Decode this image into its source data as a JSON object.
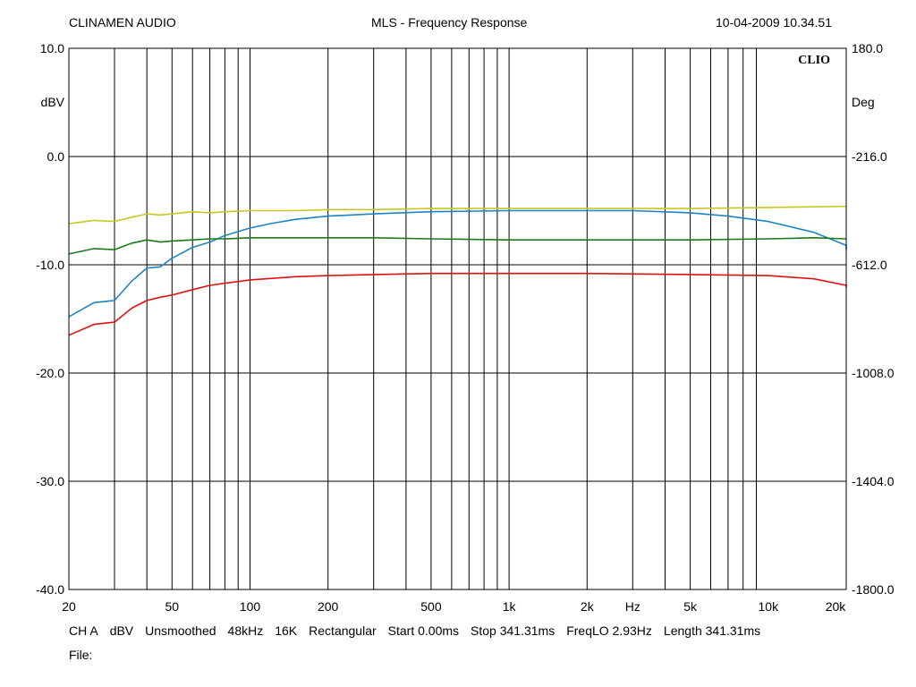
{
  "header": {
    "left": "CLINAMEN AUDIO",
    "center": "MLS - Frequency Response",
    "right": "10-04-2009 10.34.51"
  },
  "badge": "CLIO",
  "footer": {
    "settings": [
      "CH A",
      "dBV",
      "Unsmoothed",
      "48kHz",
      "16K",
      "Rectangular",
      "Start 0.00ms",
      "Stop 341.31ms",
      "FreqLO 2.93Hz",
      "Length 341.31ms"
    ],
    "file_label": "File:"
  },
  "chart_data": {
    "type": "line",
    "title": "MLS - Frequency Response",
    "x_scale": "log",
    "xlim": [
      20,
      20000
    ],
    "x_ticks": [
      {
        "value": 20,
        "label": "20"
      },
      {
        "value": 50,
        "label": "50"
      },
      {
        "value": 100,
        "label": "100"
      },
      {
        "value": 200,
        "label": "200"
      },
      {
        "value": 500,
        "label": "500"
      },
      {
        "value": 1000,
        "label": "1k"
      },
      {
        "value": 2000,
        "label": "2k"
      },
      {
        "value": 3000,
        "label": "Hz"
      },
      {
        "value": 5000,
        "label": "5k"
      },
      {
        "value": 10000,
        "label": "10k"
      },
      {
        "value": 20000,
        "label": "20k"
      }
    ],
    "ylim": [
      -40,
      10
    ],
    "y_ticks": [
      10,
      0,
      -10,
      -20,
      -30,
      -40
    ],
    "y_tick_labels": [
      "10.0",
      "0.0",
      "-10.0",
      "-20.0",
      "-30.0",
      "-40.0"
    ],
    "ylabel": "dBV",
    "y2lim": [
      -1800,
      180
    ],
    "y2_tick_labels": [
      "180.0",
      "-216.0",
      "-612.0",
      "-1008.0",
      "-1404.0",
      "-1800.0"
    ],
    "y2label": "Deg",
    "grid": true,
    "series": [
      {
        "color": "#c8c820",
        "x": [
          20,
          25,
          30,
          35,
          40,
          45,
          50,
          60,
          70,
          80,
          100,
          150,
          200,
          300,
          500,
          1000,
          2000,
          5000,
          10000,
          20000,
          21000
        ],
        "y": [
          -6.2,
          -5.9,
          -6.0,
          -5.6,
          -5.3,
          -5.4,
          -5.3,
          -5.1,
          -5.2,
          -5.1,
          -5.0,
          -5.0,
          -4.9,
          -4.9,
          -4.8,
          -4.8,
          -4.8,
          -4.8,
          -4.7,
          -4.6,
          -4.6
        ]
      },
      {
        "color": "#1f85bf",
        "x": [
          20,
          25,
          30,
          35,
          40,
          45,
          50,
          60,
          70,
          80,
          100,
          120,
          150,
          200,
          300,
          500,
          1000,
          2000,
          3000,
          5000,
          7000,
          10000,
          15000,
          20000,
          21000
        ],
        "y": [
          -14.8,
          -13.5,
          -13.3,
          -11.5,
          -10.3,
          -10.2,
          -9.4,
          -8.4,
          -7.9,
          -7.3,
          -6.6,
          -6.2,
          -5.8,
          -5.5,
          -5.3,
          -5.1,
          -5.0,
          -5.0,
          -5.0,
          -5.2,
          -5.5,
          -6.0,
          -7.0,
          -8.2,
          -8.6
        ]
      },
      {
        "color": "#1c7a1c",
        "x": [
          20,
          25,
          30,
          35,
          40,
          45,
          50,
          60,
          70,
          80,
          100,
          150,
          200,
          300,
          500,
          1000,
          2000,
          5000,
          10000,
          15000,
          20000,
          21000
        ],
        "y": [
          -9.0,
          -8.5,
          -8.6,
          -8.0,
          -7.7,
          -7.9,
          -7.8,
          -7.7,
          -7.6,
          -7.6,
          -7.5,
          -7.5,
          -7.5,
          -7.5,
          -7.6,
          -7.7,
          -7.7,
          -7.7,
          -7.6,
          -7.5,
          -7.6,
          -7.6
        ]
      },
      {
        "color": "#e01010",
        "x": [
          20,
          25,
          30,
          35,
          40,
          45,
          50,
          60,
          70,
          80,
          100,
          150,
          200,
          300,
          500,
          1000,
          2000,
          5000,
          10000,
          15000,
          20000,
          21000
        ],
        "y": [
          -16.5,
          -15.5,
          -15.3,
          -14.0,
          -13.3,
          -13.0,
          -12.8,
          -12.3,
          -11.9,
          -11.7,
          -11.4,
          -11.1,
          -11.0,
          -10.9,
          -10.8,
          -10.8,
          -10.8,
          -10.9,
          -11.0,
          -11.3,
          -11.9,
          -12.1
        ]
      }
    ]
  }
}
